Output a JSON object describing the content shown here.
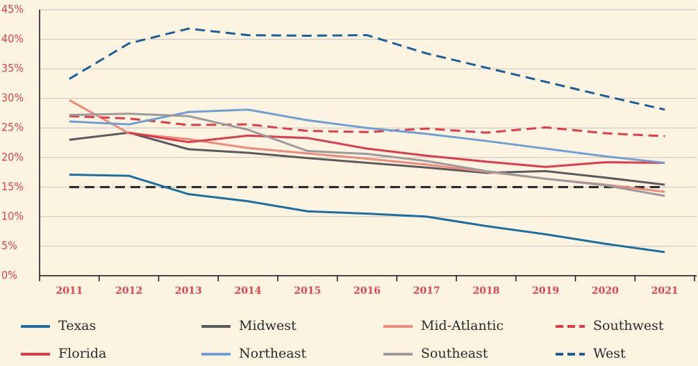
{
  "chart_data": {
    "type": "line",
    "categories": [
      "2011",
      "2012",
      "2013",
      "2014",
      "2015",
      "2016",
      "2017",
      "2018",
      "2019",
      "2020",
      "2021"
    ],
    "ylim": [
      0,
      45
    ],
    "yticks": [
      {
        "value": 0,
        "label": "0%"
      },
      {
        "value": 5,
        "label": "5%"
      },
      {
        "value": 10,
        "label": "10%"
      },
      {
        "value": 15,
        "label": "15%"
      },
      {
        "value": 20,
        "label": "20%"
      },
      {
        "value": 25,
        "label": "25%"
      },
      {
        "value": 30,
        "label": "30%"
      },
      {
        "value": 35,
        "label": "35%"
      },
      {
        "value": 40,
        "label": "40%"
      },
      {
        "value": 45,
        "label": "45%"
      }
    ],
    "grid": true,
    "reference_line": {
      "value": 15,
      "color": "#222222",
      "dashed": true
    },
    "series": [
      {
        "name": "Texas",
        "color": "#1a6ea0",
        "dashed": false,
        "values": [
          17.1,
          16.9,
          13.8,
          12.6,
          10.9,
          10.5,
          10.0,
          8.4,
          7.0,
          5.4,
          4.0
        ]
      },
      {
        "name": "Midwest",
        "color": "#5a595c",
        "dashed": false,
        "values": [
          23.0,
          24.2,
          21.4,
          20.8,
          19.9,
          19.1,
          18.3,
          17.4,
          17.7,
          16.6,
          15.4
        ]
      },
      {
        "name": "Mid-Atlantic",
        "color": "#ee8a7c",
        "dashed": false,
        "values": [
          29.7,
          24.1,
          23.1,
          21.6,
          20.7,
          19.8,
          18.8,
          17.6,
          16.4,
          15.4,
          14.2
        ]
      },
      {
        "name": "Southwest",
        "color": "#e03b4a",
        "dashed": true,
        "values": [
          27.0,
          26.6,
          25.5,
          25.6,
          24.5,
          24.3,
          24.9,
          24.2,
          25.1,
          24.1,
          23.6
        ]
      },
      {
        "name": "Florida",
        "color": "#dd3a4b",
        "dashed": false,
        "values": [
          null,
          24.2,
          22.6,
          23.7,
          23.3,
          21.5,
          20.3,
          19.3,
          18.4,
          19.2,
          19.1
        ]
      },
      {
        "name": "Northeast",
        "color": "#6fa0d4",
        "dashed": false,
        "values": [
          26.1,
          25.6,
          27.7,
          28.1,
          26.3,
          25.0,
          24.0,
          22.8,
          21.5,
          20.2,
          19.1
        ]
      },
      {
        "name": "Southeast",
        "color": "#9c9a9a",
        "dashed": false,
        "values": [
          27.2,
          27.4,
          27.0,
          24.7,
          21.1,
          20.6,
          19.4,
          17.7,
          16.4,
          15.3,
          13.5
        ]
      },
      {
        "name": "West",
        "color": "#1b5e98",
        "dashed": true,
        "values": [
          33.3,
          39.3,
          41.8,
          40.7,
          40.6,
          40.7,
          37.6,
          35.2,
          32.8,
          30.4,
          28.1
        ]
      }
    ]
  }
}
